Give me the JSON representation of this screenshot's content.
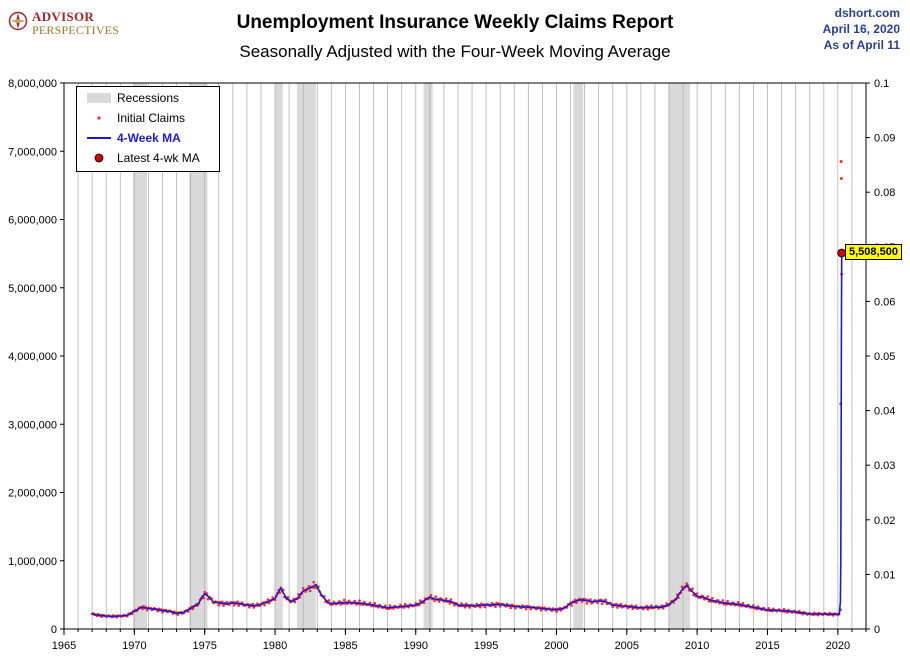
{
  "header": {
    "logo_line1": "ADVISOR",
    "logo_line2": "PERSPECTIVES",
    "title": "Unemployment Insurance Weekly Claims Report",
    "subtitle": "Seasonally Adjusted with the Four-Week Moving Average",
    "source_site": "dshort.com",
    "source_date": "April 16, 2020",
    "source_asof": "As of April 11"
  },
  "legend": {
    "recessions": "Recessions",
    "initial_claims": "Initial Claims",
    "ma": "4-Week MA",
    "latest": "Latest 4-wk MA"
  },
  "colors": {
    "recession": "#d9d9d9",
    "claims": "#ff2a2a",
    "ma": "#1a1ad6",
    "latest_marker": "#d40000",
    "callout_bg": "#ffff00",
    "grid": "#b3b3b3"
  },
  "callout": {
    "text": "5,508,500"
  },
  "chart_data": {
    "type": "line",
    "title": "Unemployment Insurance Weekly Claims Report",
    "subtitle": "Seasonally Adjusted with the Four-Week Moving Average",
    "x_range": [
      1965,
      2022
    ],
    "x_ticks": [
      1965,
      1970,
      1975,
      1980,
      1985,
      1990,
      1995,
      2000,
      2005,
      2010,
      2015,
      2020
    ],
    "x_tick_labels": [
      "1965",
      "1970",
      "1975",
      "1980",
      "1985",
      "1990",
      "1995",
      "2000",
      "2005",
      "2010",
      "2015",
      "2020"
    ],
    "ylim": [
      0,
      8000000
    ],
    "y_ticks": [
      0,
      1000000,
      2000000,
      3000000,
      4000000,
      5000000,
      6000000,
      7000000,
      8000000
    ],
    "y_tick_labels": [
      "0",
      "1,000,000",
      "2,000,000",
      "3,000,000",
      "4,000,000",
      "5,000,000",
      "6,000,000",
      "7,000,000",
      "8,000,000"
    ],
    "y2lim": [
      0,
      0.1
    ],
    "y2_ticks": [
      0,
      0.01,
      0.02,
      0.03,
      0.04,
      0.05,
      0.06,
      0.07,
      0.08,
      0.09,
      0.1
    ],
    "y2_tick_labels": [
      "0",
      "0.01",
      "0.02",
      "0.03",
      "0.04",
      "0.05",
      "0.06",
      "0.07",
      "0.08",
      "0.09",
      "0.1"
    ],
    "grid": "vertical lines each year",
    "legend_position": "top-left",
    "recessions": [
      [
        1969.9,
        1970.9
      ],
      [
        1973.9,
        1975.2
      ],
      [
        1980.0,
        1980.55
      ],
      [
        1981.55,
        1982.9
      ],
      [
        1990.55,
        1991.2
      ],
      [
        2001.2,
        2001.9
      ],
      [
        2007.95,
        2009.5
      ]
    ],
    "series": [
      {
        "name": "4-Week MA",
        "x": [
          1967.0,
          1967.5,
          1968.0,
          1968.5,
          1969.0,
          1969.5,
          1970.0,
          1970.5,
          1971.0,
          1971.5,
          1972.0,
          1972.5,
          1973.0,
          1973.5,
          1974.0,
          1974.5,
          1975.0,
          1975.3,
          1975.6,
          1976.0,
          1976.5,
          1977.0,
          1977.5,
          1978.0,
          1978.5,
          1979.0,
          1979.5,
          1980.0,
          1980.4,
          1980.8,
          1981.2,
          1981.6,
          1982.0,
          1982.5,
          1982.9,
          1983.3,
          1983.7,
          1984.0,
          1985.0,
          1986.0,
          1987.0,
          1988.0,
          1989.0,
          1990.0,
          1990.5,
          1991.0,
          1991.3,
          1991.7,
          1992.0,
          1992.5,
          1993.0,
          1994.0,
          1995.0,
          1996.0,
          1997.0,
          1998.0,
          1999.0,
          2000.0,
          2000.5,
          2001.0,
          2001.5,
          2001.8,
          2002.2,
          2002.6,
          2003.0,
          2003.5,
          2004.0,
          2005.0,
          2006.0,
          2007.0,
          2007.5,
          2008.0,
          2008.5,
          2009.0,
          2009.25,
          2009.5,
          2010.0,
          2010.5,
          2011.0,
          2012.0,
          2013.0,
          2014.0,
          2015.0,
          2016.0,
          2017.0,
          2018.0,
          2019.0,
          2019.8,
          2020.1,
          2020.18,
          2020.21,
          2020.23,
          2020.25,
          2020.27
        ],
        "values": [
          220000,
          200000,
          190000,
          185000,
          190000,
          200000,
          260000,
          320000,
          300000,
          290000,
          270000,
          260000,
          230000,
          240000,
          300000,
          360000,
          520000,
          470000,
          400000,
          380000,
          370000,
          380000,
          370000,
          350000,
          340000,
          360000,
          400000,
          450000,
          600000,
          450000,
          400000,
          450000,
          560000,
          600000,
          650000,
          500000,
          400000,
          370000,
          390000,
          380000,
          350000,
          310000,
          330000,
          350000,
          400000,
          470000,
          440000,
          430000,
          420000,
          400000,
          350000,
          340000,
          350000,
          360000,
          330000,
          320000,
          300000,
          280000,
          300000,
          370000,
          420000,
          430000,
          410000,
          400000,
          410000,
          400000,
          350000,
          330000,
          310000,
          320000,
          320000,
          360000,
          440000,
          600000,
          640000,
          580000,
          480000,
          460000,
          420000,
          380000,
          360000,
          320000,
          280000,
          270000,
          250000,
          220000,
          220000,
          215000,
          220000,
          400000,
          1000000,
          2500000,
          4300000,
          5508500
        ]
      },
      {
        "name": "Initial Claims",
        "highlight_x": [
          2020.18,
          2020.21,
          2020.23,
          2020.25,
          2020.27
        ],
        "highlight_values": [
          282000,
          3300000,
          6850000,
          6600000,
          5200000
        ]
      }
    ],
    "latest_ma": {
      "x": 2020.27,
      "value": 5508500,
      "label": "5,508,500"
    }
  }
}
